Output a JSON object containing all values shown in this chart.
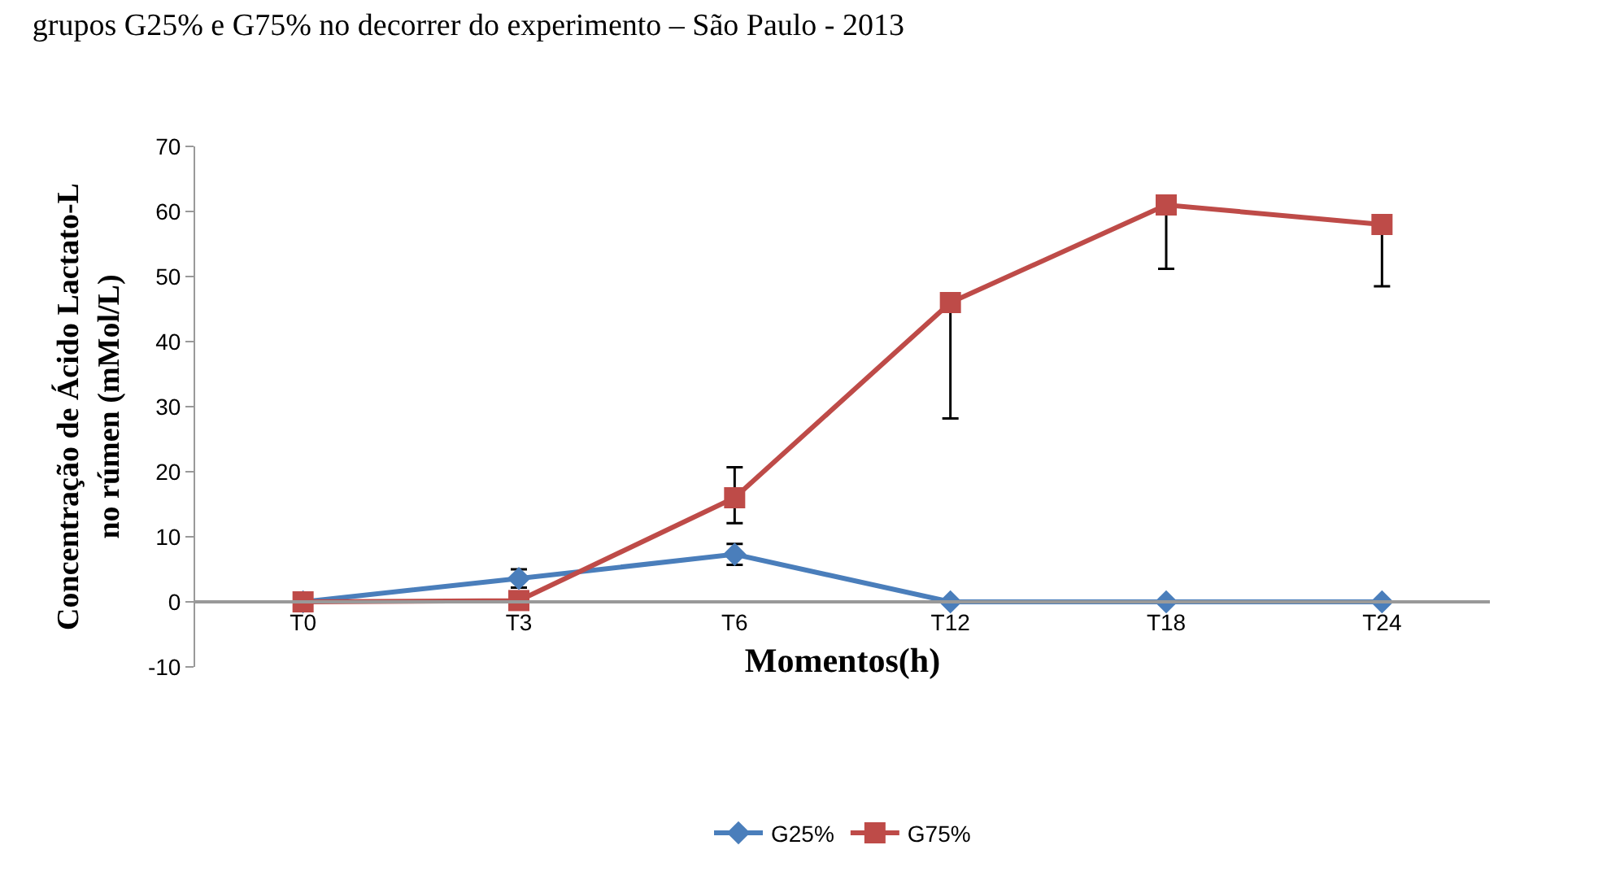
{
  "chart_data": {
    "type": "line",
    "title": "grupos G25% e G75% no decorrer do experimento – São Paulo - 2013",
    "xlabel": "Momentos(h)",
    "ylabel": "Concentração de Ácido Lactato-L\nno rúmen (mMol/L)",
    "categories": [
      "T0",
      "T3",
      "T6",
      "T12",
      "T18",
      "T24"
    ],
    "series": [
      {
        "name": "G25%",
        "color": "#4a7ebb",
        "marker": "diamond",
        "values": [
          0,
          3.6,
          7.3,
          0,
          0,
          0
        ],
        "errors": [
          null,
          1.4,
          1.6,
          null,
          null,
          null
        ]
      },
      {
        "name": "G75%",
        "color": "#be4b48",
        "marker": "square",
        "values": [
          0,
          0.2,
          16,
          46,
          61,
          58
        ],
        "errors": [
          null,
          null,
          [
            12.1,
            20.7
          ],
          [
            28.2,
            46
          ],
          [
            51.2,
            61
          ],
          [
            48.5,
            58
          ]
        ]
      }
    ],
    "ylim": [
      -10,
      70
    ],
    "yticks": [
      -10,
      0,
      10,
      20,
      30,
      40,
      50,
      60,
      70
    ],
    "grid": false,
    "legend": "bottom"
  }
}
